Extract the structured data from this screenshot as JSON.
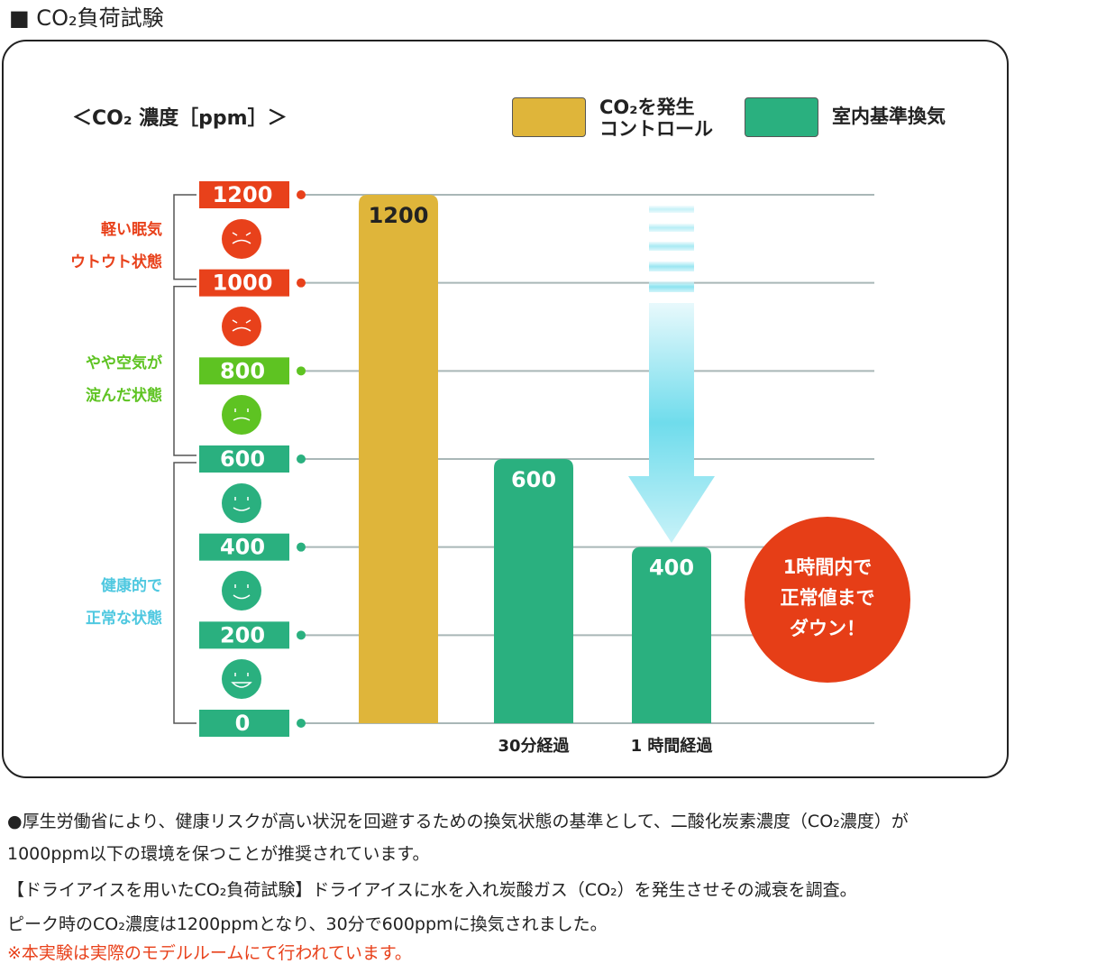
{
  "page_title": "■ CO₂負荷試験",
  "chart_data": {
    "type": "bar",
    "y_label": "＜CO₂ 濃度［ppm］＞",
    "categories": [
      null,
      "30分経過",
      "1 時間経過"
    ],
    "series": [
      {
        "name": "CO₂を発生\nコントロール",
        "color": "#dfb53a",
        "values": [
          1200,
          null,
          null
        ]
      },
      {
        "name": "室内基準換気",
        "color": "#2ab07f",
        "values": [
          null,
          600,
          400
        ]
      }
    ],
    "ylim": [
      0,
      1200
    ],
    "yticks": [
      0,
      200,
      400,
      600,
      800,
      1000,
      1200
    ],
    "ytick_colors": [
      "#2ab07f",
      "#2ab07f",
      "#2ab07f",
      "#2ab07f",
      "#5ec322",
      "#e8411b",
      "#e8411b"
    ],
    "grid": true,
    "bands": [
      {
        "label": "軽い眠気\nウトウト状態",
        "from": 1000,
        "to": 1200,
        "color": "#e8411b"
      },
      {
        "label": "やや空気が\n淀んだ状態",
        "from": 600,
        "to": 1000,
        "color": "#5ec322"
      },
      {
        "label": "健康的で\n正常な状態",
        "from": 0,
        "to": 600,
        "color": "#4fc8e0"
      }
    ],
    "annotation": "1時間内で\n正常値まで\nダウン！"
  },
  "notes": [
    "●厚生労働省により、健康リスクが高い状況を回避するための換気状態の基準として、二酸化炭素濃度（CO₂濃度）が",
    "1000ppm以下の環境を保つことが推奨されています。",
    "【ドライアイスを用いたCO₂負荷試験】ドライアイスに水を入れ炭酸ガス（CO₂）を発生させその減衰を調査。",
    "ピーク時のCO₂濃度は1200ppmとなり、30分で600ppmに換気されました。",
    "※本実験は実際のモデルルームにて行われています。"
  ]
}
